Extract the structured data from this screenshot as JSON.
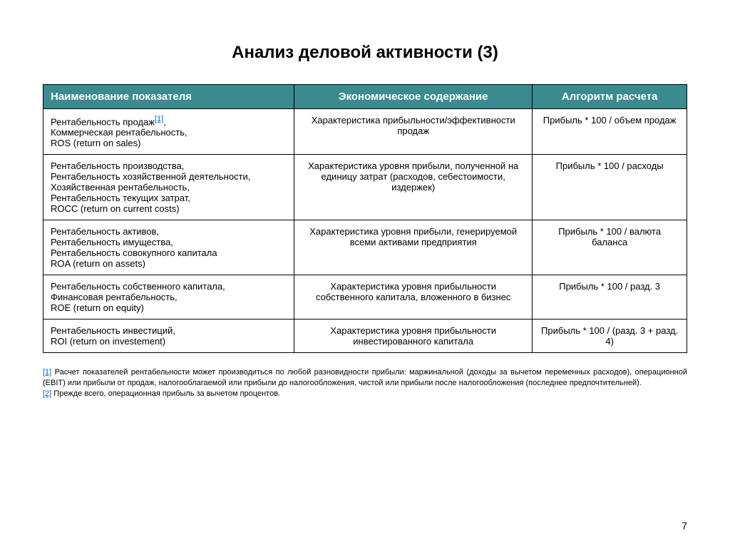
{
  "title": "Анализ деловой активности (3)",
  "pageNumber": "7",
  "table": {
    "header": {
      "bgColor": "#3b8a8f",
      "textColor": "#ffffff",
      "cols": [
        "Наименование показателя",
        "Экономическое содержание",
        "Алгоритм расчета"
      ]
    },
    "rows": [
      {
        "name_pre": "Рентабельность продаж",
        "name_ref": "[1]",
        "name_post": ",\nКоммерческая рентабельность,\nROS (return on sales)",
        "econ": "Характеристика прибыльности/эффективности продаж",
        "algo": "Прибыль * 100 / объем продаж"
      },
      {
        "name_pre": "Рентабельность производства,\nРентабельность хозяйственной деятельности,\nХозяйственная рентабельность,\nРентабельность текущих затрат,\nROCC (return on current costs)",
        "name_ref": "",
        "name_post": "",
        "econ": "Характеристика уровня прибыли, полученной на единицу затрат (расходов, себестоимости, издержек)",
        "algo": "Прибыль * 100 / расходы"
      },
      {
        "name_pre": "Рентабельность активов,\nРентабельность имущества,\nРентабельность совокупного капитала\nROA (return on assets)",
        "name_ref": "",
        "name_post": "",
        "econ": "Характеристика уровня прибыли, генерируемой всеми активами предприятия",
        "algo": "Прибыль * 100 / валюта баланса"
      },
      {
        "name_pre": "Рентабельность собственного капитала,\nФинансовая рентабельность,\nROE (return on equity)",
        "name_ref": "",
        "name_post": "",
        "econ": "Характеристика уровня прибыльности собственного капитала, вложенного в бизнес",
        "algo": "Прибыль * 100 / разд. 3"
      },
      {
        "name_pre": "Рентабельность инвестиций,\nROI (return on investement)",
        "name_ref": "",
        "name_post": "",
        "econ": "Характеристика уровня прибыльности инвестированного капитала",
        "algo": "Прибыль * 100 / (разд. 3 + разд. 4)"
      }
    ]
  },
  "footnotes": [
    {
      "marker": "[1]",
      "text": " Расчет показателей рентабельности может производиться по любой разновидности прибыли: маржинальной (доходы за вычетом переменных расходов), операционной (EBIT) или прибыли от продаж, налогооблагаемой или прибыли до налогообложения, чистой или прибыли после налогообложения (последнее предпочтительней)."
    },
    {
      "marker": "[2]",
      "text": " Прежде всего, операционная прибыль за вычетом процентов."
    }
  ]
}
